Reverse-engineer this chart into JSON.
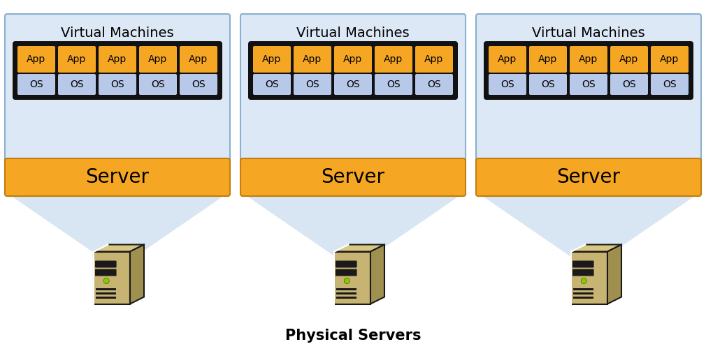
{
  "title": "Physical Servers",
  "vm_title": "Virtual Machines",
  "server_label": "Server",
  "app_label": "App",
  "os_label": "OS",
  "num_vms": 3,
  "num_apps_per_vm": 5,
  "bg_color": "#ffffff",
  "vm_bg_color": "#dce8f5",
  "vm_border_color": "#8aafd0",
  "server_bg_color": "#f5a623",
  "server_border_color": "#c47d0e",
  "app_bg_color": "#f5a623",
  "app_border_color": "#111111",
  "os_bg_color": "#b8c8e8",
  "os_border_color": "#111111",
  "outer_box_color": "#111111",
  "app_text_color": "#000000",
  "os_text_color": "#000000",
  "server_text_color": "#000000",
  "vm_title_color": "#000000",
  "title_color": "#000000",
  "connector_color": "#d8e5f3",
  "tower_front_color": "#c8b472",
  "tower_top_color": "#d8c882",
  "tower_right_color": "#a09050",
  "tower_outline_color": "#1a1a1a",
  "tower_stripe_color": "#1a1a1a",
  "tower_led_color": "#88cc00",
  "title_fontsize": 15,
  "vm_title_fontsize": 14,
  "server_fontsize": 20,
  "app_fontsize": 10,
  "os_fontsize": 10
}
